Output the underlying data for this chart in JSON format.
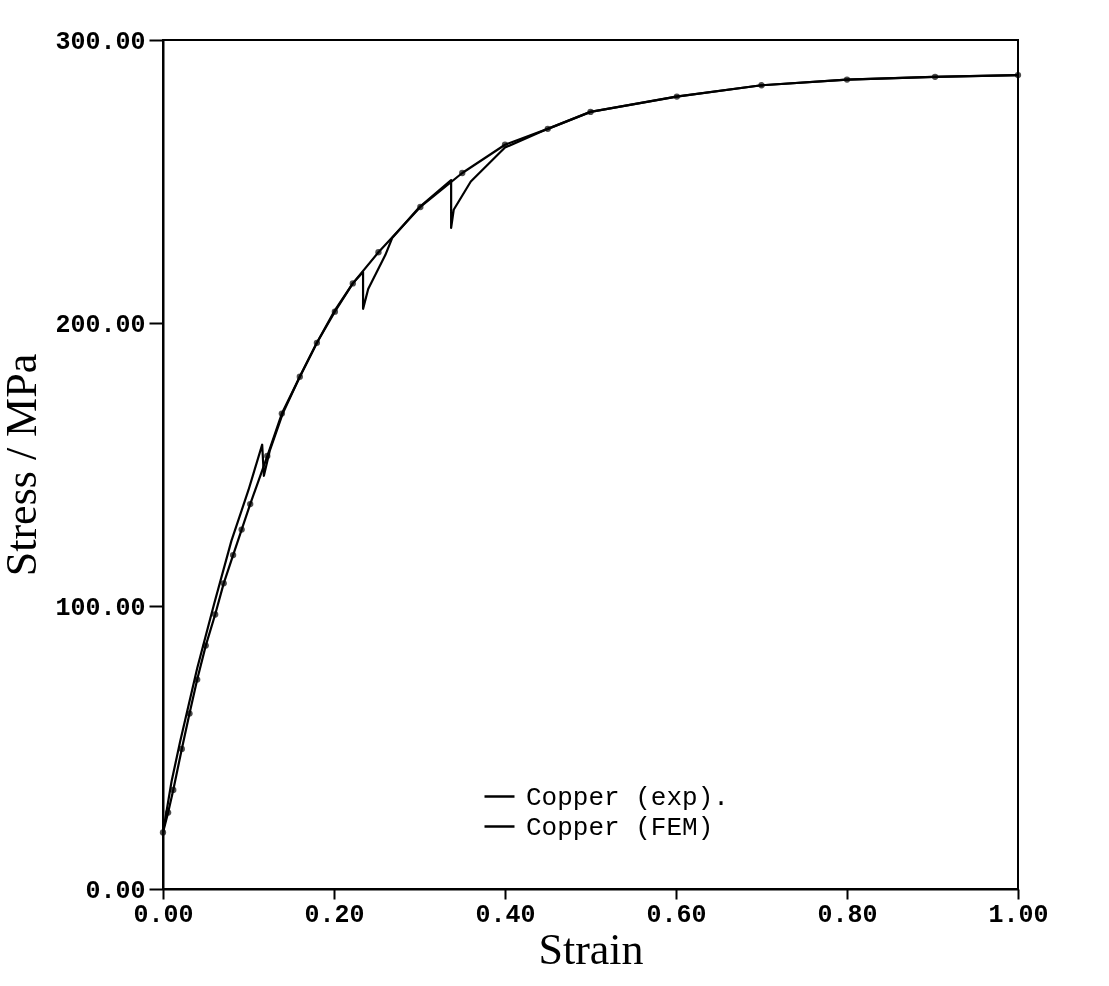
{
  "chart_data": {
    "type": "line",
    "xlabel": "Strain",
    "ylabel": "Stress  /  MPa",
    "xlim": [
      0,
      1
    ],
    "ylim": [
      0,
      300
    ],
    "xticks": [
      {
        "value": 0,
        "label": "0.00"
      },
      {
        "value": 0.2,
        "label": "0.20"
      },
      {
        "value": 0.4,
        "label": "0.40"
      },
      {
        "value": 0.6,
        "label": "0.60"
      },
      {
        "value": 0.8,
        "label": "0.80"
      },
      {
        "value": 1,
        "label": "1.00"
      }
    ],
    "yticks": [
      {
        "value": 0,
        "label": "0.00"
      },
      {
        "value": 100,
        "label": "100.00"
      },
      {
        "value": 200,
        "label": "200.00"
      },
      {
        "value": 300,
        "label": "300.00"
      }
    ],
    "grid": false,
    "legend": "bottom right",
    "line_style": "solid",
    "series": [
      {
        "name": "Copper (exp).",
        "color": "#000000",
        "marker": "none",
        "x": [
          0,
          0.01,
          0.02,
          0.04,
          0.06,
          0.08,
          0.1,
          0.116,
          0.118,
          0.125,
          0.14,
          0.16,
          0.18,
          0.2,
          0.222,
          0.234,
          0.234,
          0.24,
          0.26,
          0.268,
          0.3,
          0.337,
          0.337,
          0.34,
          0.36,
          0.38,
          0.4,
          0.45,
          0.5,
          0.6,
          0.7,
          0.8,
          0.9,
          1.0
        ],
        "values": [
          20,
          38,
          52,
          78,
          101,
          123,
          141,
          157,
          146,
          155,
          168,
          181,
          193,
          204,
          214,
          218,
          205,
          212,
          224,
          230,
          241,
          250.5,
          233.6,
          240,
          250,
          256,
          262,
          268.6,
          274.6,
          280,
          284,
          286,
          287,
          287.6
        ]
      },
      {
        "name": "Copper (FEM)",
        "color": "#000000",
        "marker": "circle",
        "x": [
          0,
          0.006,
          0.012,
          0.022,
          0.031,
          0.04,
          0.05,
          0.061,
          0.071,
          0.082,
          0.092,
          0.102,
          0.122,
          0.139,
          0.16,
          0.18,
          0.201,
          0.222,
          0.252,
          0.301,
          0.35,
          0.4,
          0.45,
          0.5,
          0.601,
          0.7,
          0.8,
          0.903,
          1.0
        ],
        "values": [
          20,
          27,
          35,
          49.5,
          62,
          74,
          86,
          97,
          108,
          118,
          127,
          136,
          153,
          168,
          181,
          193,
          204,
          214,
          225,
          241,
          253,
          263,
          268.6,
          274.6,
          280,
          284,
          286,
          287,
          287.6
        ]
      }
    ]
  }
}
